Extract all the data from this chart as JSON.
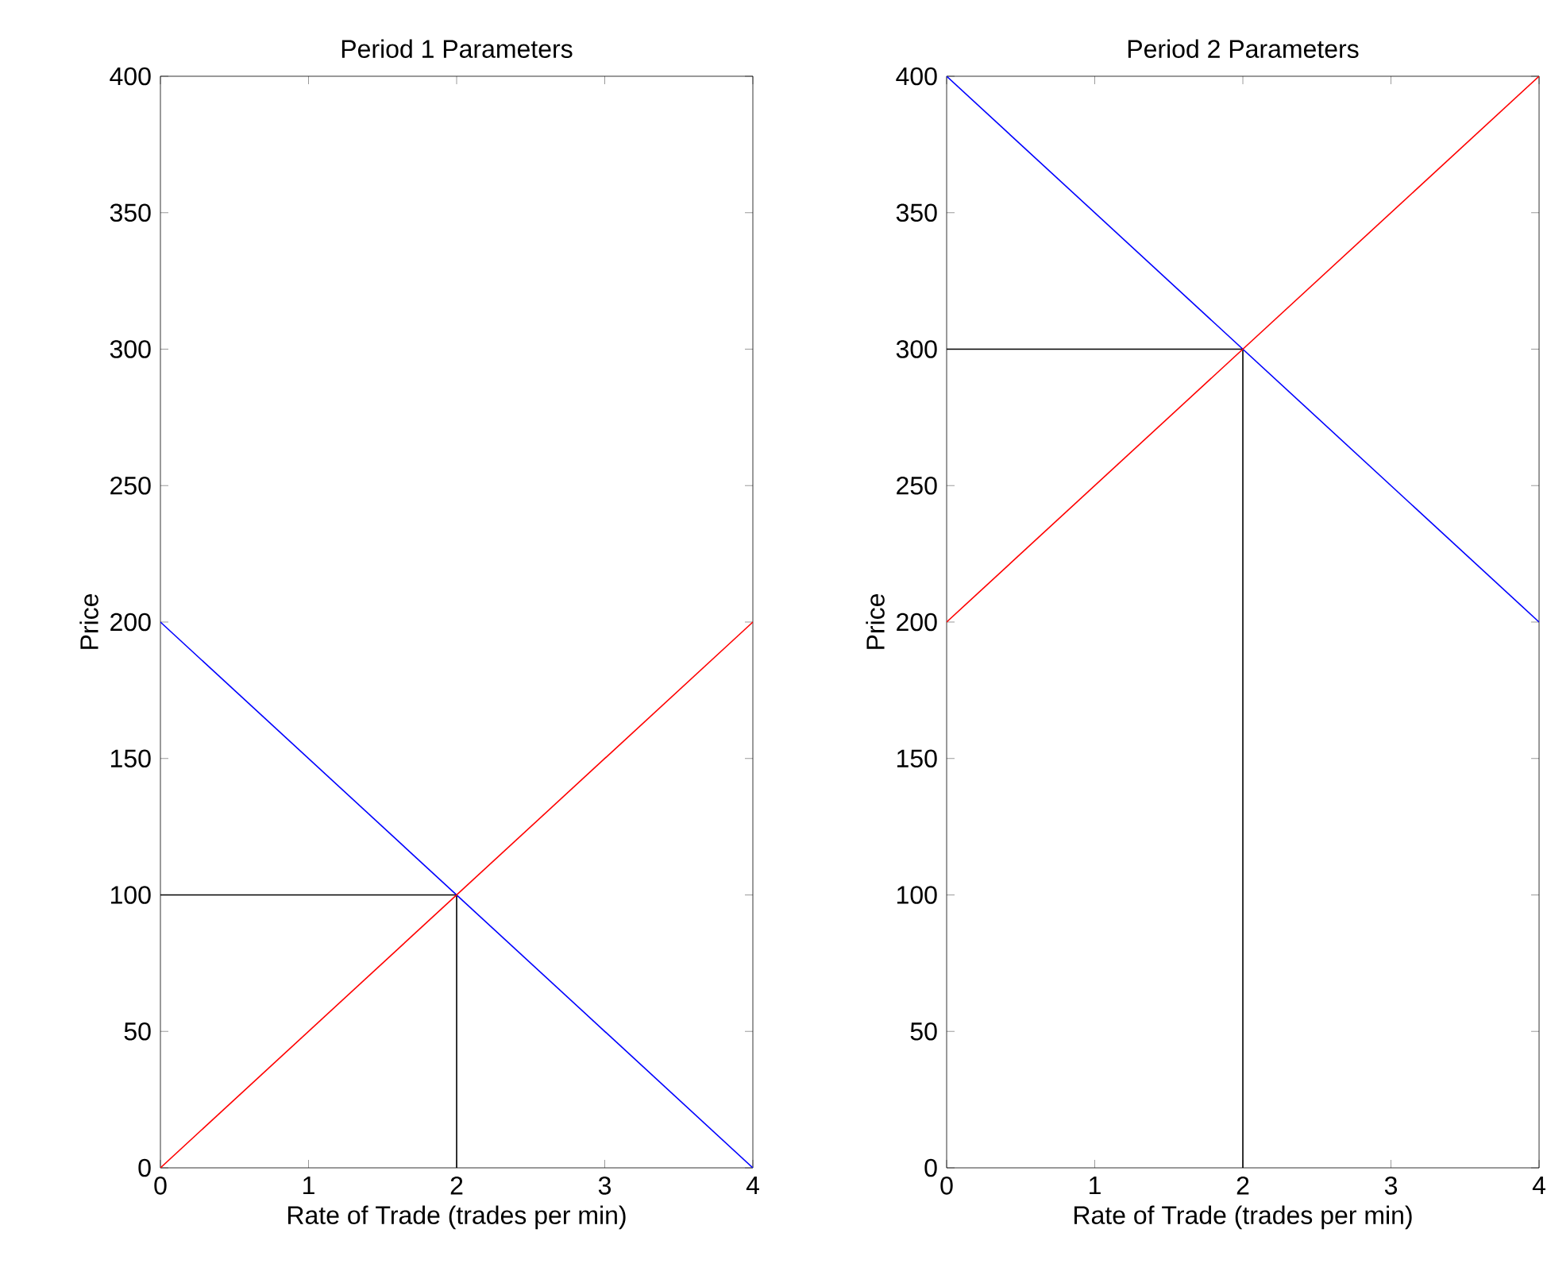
{
  "chart_data": [
    {
      "type": "line",
      "title": "Period 1 Parameters",
      "xlabel": "Rate of Trade (trades per min)",
      "ylabel": "Price",
      "xlim": [
        0,
        4
      ],
      "ylim": [
        0,
        400
      ],
      "xticks": [
        0,
        1,
        2,
        3,
        4
      ],
      "yticks": [
        0,
        50,
        100,
        150,
        200,
        250,
        300,
        350,
        400
      ],
      "series": [
        {
          "color": "#000000",
          "x": [
            0,
            2,
            2
          ],
          "values": [
            100,
            100,
            0
          ]
        },
        {
          "color": "#0000ff",
          "x": [
            0,
            4
          ],
          "values": [
            200,
            0
          ]
        },
        {
          "color": "#ff0000",
          "x": [
            0,
            4
          ],
          "values": [
            0,
            200
          ]
        }
      ]
    },
    {
      "type": "line",
      "title": "Period 2 Parameters",
      "xlabel": "Rate of Trade (trades per min)",
      "ylabel": "Price",
      "xlim": [
        0,
        4
      ],
      "ylim": [
        0,
        400
      ],
      "xticks": [
        0,
        1,
        2,
        3,
        4
      ],
      "yticks": [
        0,
        50,
        100,
        150,
        200,
        250,
        300,
        350,
        400
      ],
      "series": [
        {
          "color": "#000000",
          "x": [
            0,
            2,
            2
          ],
          "values": [
            300,
            300,
            0
          ]
        },
        {
          "color": "#0000ff",
          "x": [
            0,
            4
          ],
          "values": [
            400,
            200
          ]
        },
        {
          "color": "#ff0000",
          "x": [
            0,
            4
          ],
          "values": [
            200,
            400
          ]
        }
      ]
    }
  ]
}
